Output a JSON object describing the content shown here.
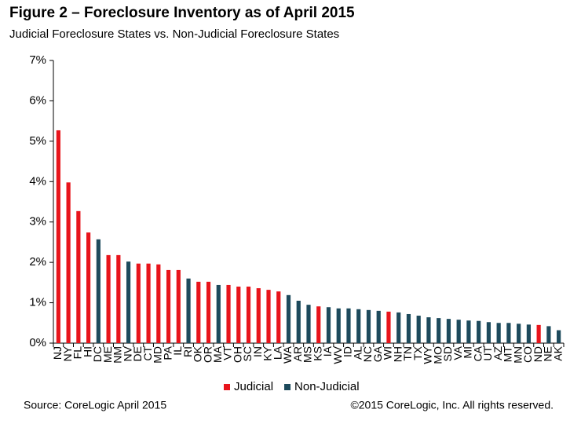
{
  "chart_data": {
    "type": "bar",
    "title": "Figure 2 – Foreclosure Inventory as of April 2015",
    "subtitle": "Judicial Foreclosure States vs. Non-Judicial Foreclosure States",
    "source": "Source: CoreLogic  April 2015",
    "copyright": "©2015 CoreLogic, Inc. All rights reserved.",
    "categories": [
      "NJ",
      "NY",
      "FL",
      "HI",
      "DC",
      "ME",
      "NM",
      "NV",
      "DE",
      "CT",
      "MD",
      "PA",
      "IL",
      "RI",
      "OK",
      "OR",
      "MA",
      "VT",
      "OH",
      "SC",
      "IN",
      "KY",
      "LA",
      "WA",
      "AR",
      "MS",
      "KS",
      "IA",
      "WV",
      "ID",
      "AL",
      "NC",
      "GA",
      "WI",
      "NH",
      "TN",
      "TX",
      "WY",
      "MO",
      "SD",
      "VA",
      "MI",
      "CA",
      "UT",
      "AZ",
      "MT",
      "MN",
      "CO",
      "ND",
      "NE",
      "AK"
    ],
    "series": [
      {
        "name": "Judicial",
        "color": "#e8141b",
        "values": [
          5.27,
          3.98,
          3.27,
          2.74,
          null,
          2.18,
          2.18,
          null,
          1.97,
          1.97,
          1.95,
          1.81,
          1.81,
          null,
          1.52,
          1.52,
          null,
          1.44,
          1.4,
          1.4,
          1.36,
          1.32,
          1.28,
          null,
          null,
          null,
          0.91,
          null,
          null,
          null,
          null,
          null,
          null,
          0.78,
          null,
          null,
          null,
          null,
          null,
          null,
          null,
          null,
          null,
          null,
          null,
          null,
          null,
          null,
          0.45,
          null,
          null
        ]
      },
      {
        "name": "Non-Judicial",
        "color": "#1d4a5c",
        "values": [
          null,
          null,
          null,
          null,
          2.57,
          null,
          null,
          2.02,
          null,
          null,
          null,
          null,
          null,
          1.6,
          null,
          null,
          1.44,
          null,
          null,
          null,
          null,
          null,
          null,
          1.19,
          1.05,
          0.95,
          null,
          0.89,
          0.86,
          0.86,
          0.84,
          0.82,
          0.8,
          null,
          0.76,
          0.72,
          0.68,
          0.64,
          0.62,
          0.6,
          0.58,
          0.56,
          0.55,
          0.52,
          0.5,
          0.5,
          0.48,
          0.46,
          null,
          0.42,
          0.32
        ]
      }
    ],
    "ylim": [
      0,
      7
    ],
    "yticks": [
      {
        "value": 0,
        "label": "0%"
      },
      {
        "value": 1,
        "label": "1%"
      },
      {
        "value": 2,
        "label": "2%"
      },
      {
        "value": 3,
        "label": "3%"
      },
      {
        "value": 4,
        "label": "4%"
      },
      {
        "value": 5,
        "label": "5%"
      },
      {
        "value": 6,
        "label": "6%"
      },
      {
        "value": 7,
        "label": "7%"
      }
    ],
    "grid": false,
    "legend": "bottom"
  }
}
